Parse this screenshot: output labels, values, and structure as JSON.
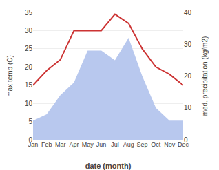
{
  "chart_data": {
    "type": "line",
    "categories": [
      "Jan",
      "Feb",
      "Mar",
      "Apr",
      "May",
      "Jun",
      "Jul",
      "Aug",
      "Sep",
      "Oct",
      "Nov",
      "Dec"
    ],
    "series": [
      {
        "type": "area",
        "color": "#b8c8ee",
        "axis": "y2",
        "values": [
          6,
          8,
          14,
          18,
          28,
          28,
          25,
          32,
          20,
          10,
          6,
          6
        ]
      },
      {
        "type": "line",
        "color": "#cc3333",
        "values": [
          15,
          19,
          22,
          30,
          30,
          30,
          34.5,
          32,
          25,
          20,
          18,
          15
        ]
      }
    ],
    "xlabel": "date (month)",
    "ylabel": "max temp (C)",
    "y2label": "med. precipitation (kg/m2)",
    "ylim": [
      0,
      35
    ],
    "yticks": [
      0,
      5,
      10,
      15,
      20,
      25,
      30,
      35
    ],
    "y2lim": [
      0,
      40
    ],
    "y2ticks": [
      0,
      10,
      20,
      30,
      40
    ],
    "grid": true
  }
}
